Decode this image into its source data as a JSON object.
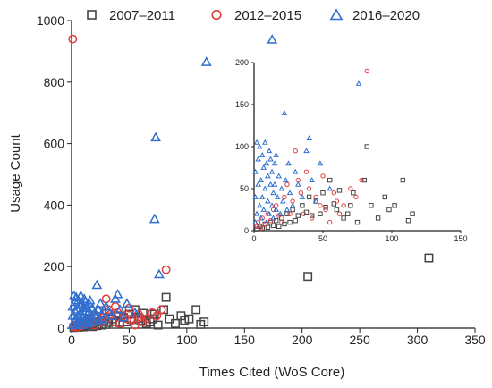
{
  "chart_data": {
    "type": "scatter",
    "title": "",
    "xlabel": "Times Cited (WoS Core)",
    "ylabel": "Usage Count",
    "xlim": [
      0,
      350
    ],
    "ylim": [
      0,
      1000
    ],
    "xticks": [
      0,
      50,
      100,
      150,
      200,
      250,
      300,
      350
    ],
    "yticks": [
      0,
      200,
      400,
      600,
      800,
      1000
    ],
    "grid": false,
    "legend_position": "top",
    "series": [
      {
        "name": "2007–2011",
        "marker": "square",
        "color": "#444444",
        "points": [
          [
            2,
            2
          ],
          [
            4,
            5
          ],
          [
            6,
            3
          ],
          [
            8,
            8
          ],
          [
            10,
            4
          ],
          [
            12,
            10
          ],
          [
            14,
            6
          ],
          [
            16,
            12
          ],
          [
            18,
            5
          ],
          [
            20,
            15
          ],
          [
            22,
            8
          ],
          [
            24,
            20
          ],
          [
            26,
            10
          ],
          [
            28,
            25
          ],
          [
            30,
            12
          ],
          [
            32,
            18
          ],
          [
            35,
            30
          ],
          [
            38,
            22
          ],
          [
            40,
            40
          ],
          [
            42,
            18
          ],
          [
            45,
            35
          ],
          [
            48,
            20
          ],
          [
            50,
            45
          ],
          [
            52,
            28
          ],
          [
            55,
            60
          ],
          [
            58,
            32
          ],
          [
            60,
            25
          ],
          [
            62,
            48
          ],
          [
            65,
            15
          ],
          [
            68,
            20
          ],
          [
            70,
            30
          ],
          [
            72,
            45
          ],
          [
            75,
            10
          ],
          [
            80,
            60
          ],
          [
            82,
            100
          ],
          [
            85,
            30
          ],
          [
            90,
            15
          ],
          [
            95,
            40
          ],
          [
            98,
            25
          ],
          [
            102,
            30
          ],
          [
            108,
            60
          ],
          [
            112,
            12
          ],
          [
            115,
            20
          ],
          [
            205,
            168
          ],
          [
            310,
            228
          ]
        ]
      },
      {
        "name": "2012–2015",
        "marker": "circle",
        "color": "#e03c3c",
        "points": [
          [
            1,
            940
          ],
          [
            2,
            5
          ],
          [
            3,
            10
          ],
          [
            5,
            3
          ],
          [
            6,
            15
          ],
          [
            8,
            8
          ],
          [
            10,
            20
          ],
          [
            12,
            12
          ],
          [
            14,
            25
          ],
          [
            16,
            30
          ],
          [
            18,
            18
          ],
          [
            20,
            10
          ],
          [
            22,
            40
          ],
          [
            24,
            55
          ],
          [
            26,
            20
          ],
          [
            28,
            35
          ],
          [
            30,
            95
          ],
          [
            32,
            60
          ],
          [
            34,
            45
          ],
          [
            36,
            20
          ],
          [
            38,
            70
          ],
          [
            40,
            50
          ],
          [
            42,
            15
          ],
          [
            45,
            40
          ],
          [
            48,
            30
          ],
          [
            50,
            65
          ],
          [
            52,
            25
          ],
          [
            55,
            10
          ],
          [
            58,
            45
          ],
          [
            60,
            35
          ],
          [
            62,
            20
          ],
          [
            65,
            30
          ],
          [
            70,
            50
          ],
          [
            74,
            40
          ],
          [
            78,
            60
          ],
          [
            82,
            190
          ]
        ]
      },
      {
        "name": "2016–2020",
        "marker": "triangle",
        "color": "#2f6fd0",
        "points": [
          [
            1,
            10
          ],
          [
            1,
            40
          ],
          [
            1,
            70
          ],
          [
            2,
            105
          ],
          [
            2,
            20
          ],
          [
            3,
            55
          ],
          [
            3,
            85
          ],
          [
            4,
            30
          ],
          [
            4,
            100
          ],
          [
            5,
            60
          ],
          [
            5,
            15
          ],
          [
            6,
            90
          ],
          [
            6,
            40
          ],
          [
            7,
            75
          ],
          [
            7,
            25
          ],
          [
            8,
            105
          ],
          [
            8,
            50
          ],
          [
            9,
            80
          ],
          [
            9,
            10
          ],
          [
            10,
            65
          ],
          [
            10,
            35
          ],
          [
            11,
            95
          ],
          [
            11,
            20
          ],
          [
            12,
            55
          ],
          [
            12,
            85
          ],
          [
            13,
            30
          ],
          [
            13,
            70
          ],
          [
            14,
            45
          ],
          [
            14,
            15
          ],
          [
            15,
            80
          ],
          [
            15,
            55
          ],
          [
            16,
            25
          ],
          [
            16,
            90
          ],
          [
            17,
            40
          ],
          [
            18,
            65
          ],
          [
            19,
            20
          ],
          [
            20,
            50
          ],
          [
            21,
            35
          ],
          [
            22,
            140
          ],
          [
            23,
            60
          ],
          [
            24,
            25
          ],
          [
            25,
            80
          ],
          [
            26,
            45
          ],
          [
            28,
            30
          ],
          [
            30,
            70
          ],
          [
            32,
            55
          ],
          [
            35,
            40
          ],
          [
            38,
            95
          ],
          [
            40,
            110
          ],
          [
            42,
            60
          ],
          [
            45,
            35
          ],
          [
            48,
            80
          ],
          [
            55,
            50
          ],
          [
            72,
            355
          ],
          [
            73,
            620
          ],
          [
            76,
            175
          ],
          [
            117,
            865
          ],
          [
            174,
            938
          ]
        ]
      }
    ],
    "inset": {
      "type": "scatter",
      "xlim": [
        0,
        150
      ],
      "ylim": [
        0,
        200
      ],
      "xticks": [
        0,
        50,
        100,
        150
      ],
      "yticks": [
        0,
        50,
        100,
        150,
        200
      ]
    }
  }
}
